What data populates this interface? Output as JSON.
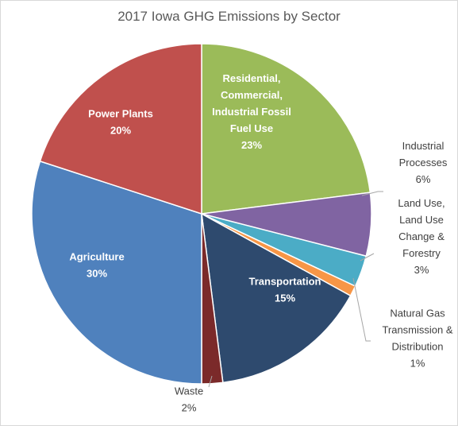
{
  "chart_data": {
    "type": "pie",
    "title": "2017 Iowa GHG Emissions by Sector",
    "slices": [
      {
        "label": [
          "Residential,",
          "Commercial,",
          "Industrial Fossil",
          "Fuel Use"
        ],
        "pct_label": "23%",
        "value": 23,
        "color": "#9bbb59",
        "placement": "inside"
      },
      {
        "label": [
          "Industrial",
          "Processes"
        ],
        "pct_label": "6%",
        "value": 6,
        "color": "#8064a2",
        "placement": "outside"
      },
      {
        "label": [
          "Land Use,",
          "Land Use",
          "Change &",
          "Forestry"
        ],
        "pct_label": "3%",
        "value": 3,
        "color": "#4bacc6",
        "placement": "outside"
      },
      {
        "label": [
          "Natural Gas",
          "Transmission &",
          "Distribution"
        ],
        "pct_label": "1%",
        "value": 1,
        "color": "#f79646",
        "placement": "outside"
      },
      {
        "label": [
          "Transportation"
        ],
        "pct_label": "15%",
        "value": 15,
        "color": "#2e4a6e",
        "placement": "inside"
      },
      {
        "label": [
          "Waste"
        ],
        "pct_label": "2%",
        "value": 2,
        "color": "#7b2a2a",
        "placement": "outside"
      },
      {
        "label": [
          "Agriculture"
        ],
        "pct_label": "30%",
        "value": 30,
        "color": "#4f81bd",
        "placement": "inside"
      },
      {
        "label": [
          "Power Plants"
        ],
        "pct_label": "20%",
        "value": 20,
        "color": "#c0504d",
        "placement": "inside"
      }
    ]
  }
}
